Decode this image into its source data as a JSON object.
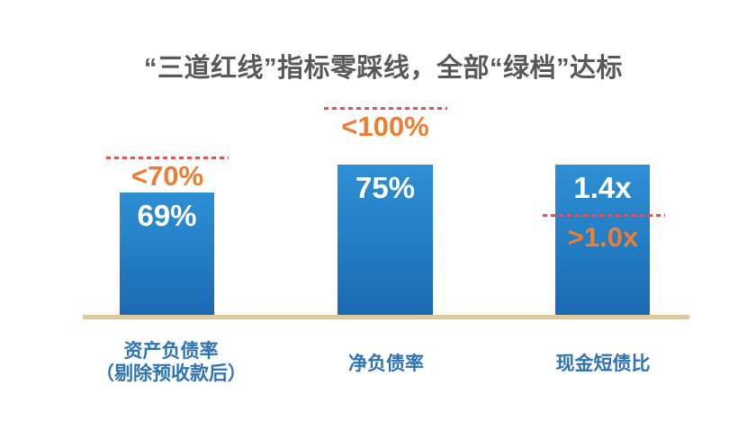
{
  "title": "“三道红线”指标零踩线，全部“绿档”达标",
  "colors": {
    "background": "#FFFFFF",
    "title_text": "#595959",
    "bar_gradient_top": "#2F8FD4",
    "bar_gradient_bottom": "#1B69B0",
    "value_text": "#FFFFFF",
    "threshold_text": "#ED7D31",
    "threshold_dash_line": "#DE5459",
    "axis_baseline": "#D8CA9E",
    "category_text": "#2E74B5"
  },
  "chart_data": {
    "type": "bar",
    "title": "“三道红线”指标零踩线，全部“绿档”达标",
    "categories": [
      "资产负债率（剔除预收款后）",
      "净负债率",
      "现金短债比"
    ],
    "values": [
      69,
      75,
      1.4
    ],
    "value_labels": [
      "69%",
      "75%",
      "1.4x"
    ],
    "threshold_labels": [
      "<70%",
      "<100%",
      ">1.0x"
    ],
    "threshold_values": [
      70,
      100,
      1.0
    ],
    "threshold_line_style": "red dashed",
    "threshold_line_position": [
      "above bar",
      "above bar",
      "crosses bar below value"
    ],
    "legend": "none",
    "grid": "off",
    "xlabel": "",
    "ylabel": ""
  },
  "bars": [
    {
      "value": "69%",
      "threshold": "<70%",
      "category_line1": "资产负债率",
      "category_line2": "（剔除预收款后）"
    },
    {
      "value": "75%",
      "threshold": "<100%",
      "category_line1": "净负债率",
      "category_line2": ""
    },
    {
      "value": "1.4x",
      "threshold": ">1.0x",
      "category_line1": "现金短债比",
      "category_line2": ""
    }
  ]
}
